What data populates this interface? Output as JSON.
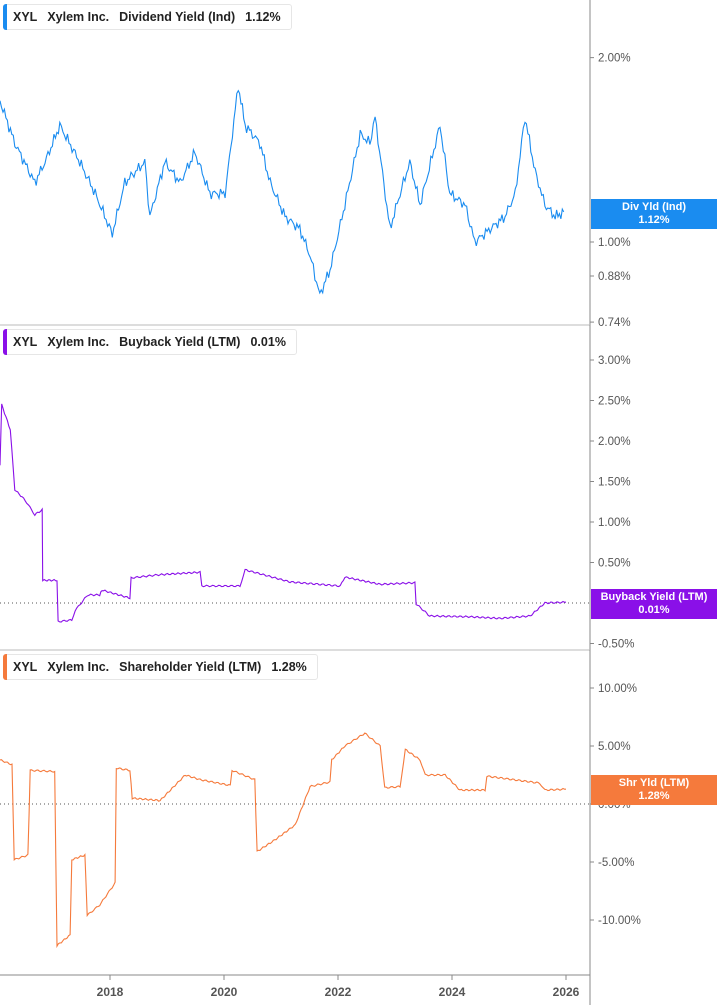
{
  "chart_data": [
    {
      "type": "line",
      "ticker": "XYL",
      "company": "Xylem Inc.",
      "title": "Dividend Yield (Ind)",
      "value_label": "1.12%",
      "tag_title": "Div Yld (Ind)",
      "tag_value": "1.12%",
      "color": "#1a8cf0",
      "scale": "log",
      "yticks": [
        "2.00%",
        "1.00%",
        "0.88%",
        "0.74%"
      ],
      "ytick_values": [
        2.0,
        1.0,
        0.88,
        0.74
      ],
      "x": [
        2016.07,
        2016.33,
        2016.68,
        2016.86,
        2017.12,
        2017.47,
        2017.74,
        2018.04,
        2018.26,
        2018.61,
        2018.7,
        2018.96,
        2019.23,
        2019.49,
        2019.75,
        2020.02,
        2020.25,
        2020.37,
        2020.63,
        2020.81,
        2021.07,
        2021.33,
        2021.51,
        2021.68,
        2021.86,
        2022.12,
        2022.39,
        2022.56,
        2022.65,
        2022.91,
        2023.09,
        2023.26,
        2023.44,
        2023.79,
        2023.96,
        2024.23,
        2024.4,
        2024.67,
        2024.93,
        2025.11,
        2025.28,
        2025.46,
        2025.63,
        2025.81,
        2025.96
      ],
      "y": [
        1.7,
        1.45,
        1.25,
        1.35,
        1.55,
        1.35,
        1.2,
        1.03,
        1.25,
        1.35,
        1.1,
        1.35,
        1.25,
        1.4,
        1.2,
        1.2,
        1.8,
        1.55,
        1.45,
        1.25,
        1.1,
        1.05,
        0.95,
        0.82,
        0.9,
        1.15,
        1.5,
        1.45,
        1.6,
        1.05,
        1.2,
        1.35,
        1.15,
        1.55,
        1.2,
        1.15,
        1.0,
        1.05,
        1.1,
        1.2,
        1.6,
        1.3,
        1.15,
        1.1,
        1.12
      ],
      "ylim": [
        0.72,
        2.3
      ]
    },
    {
      "type": "line",
      "ticker": "XYL",
      "company": "Xylem Inc.",
      "title": "Buyback Yield (LTM)",
      "value_label": "0.01%",
      "tag_title": "Buyback Yield (LTM)",
      "tag_value": "0.01%",
      "color": "#8a10e8",
      "scale": "linear",
      "yticks": [
        "3.00%",
        "2.50%",
        "2.00%",
        "1.50%",
        "1.00%",
        "0.50%",
        "-0.50%"
      ],
      "ytick_values": [
        3.0,
        2.5,
        2.0,
        1.5,
        1.0,
        0.5,
        -0.5
      ],
      "x": [
        2016.07,
        2016.1,
        2016.25,
        2016.33,
        2016.51,
        2016.68,
        2016.81,
        2016.82,
        2017.07,
        2017.09,
        2017.33,
        2017.39,
        2017.61,
        2017.82,
        2017.86,
        2018.35,
        2018.37,
        2018.88,
        2019.58,
        2019.61,
        2020.28,
        2020.37,
        2021.16,
        2022.04,
        2022.12,
        2022.74,
        2023.35,
        2023.37,
        2023.61,
        2024.32,
        2024.84,
        2025.37,
        2025.63,
        2026.0
      ],
      "y": [
        1.7,
        2.45,
        2.14,
        1.4,
        1.27,
        1.09,
        1.15,
        0.28,
        0.28,
        -0.23,
        -0.21,
        -0.09,
        0.1,
        0.1,
        0.16,
        0.06,
        0.31,
        0.35,
        0.38,
        0.21,
        0.21,
        0.41,
        0.26,
        0.21,
        0.32,
        0.23,
        0.25,
        -0.01,
        -0.16,
        -0.17,
        -0.19,
        -0.16,
        0.0,
        0.01
      ],
      "ylim": [
        -0.7,
        3.5
      ]
    },
    {
      "type": "line",
      "ticker": "XYL",
      "company": "Xylem Inc.",
      "title": "Shareholder Yield (LTM)",
      "value_label": "1.28%",
      "tag_title": "Shr Yld (LTM)",
      "tag_value": "1.28%",
      "color": "#f57a3c",
      "scale": "linear",
      "yticks": [
        "10.00%",
        "5.00%",
        "0.00%",
        "-5.00%",
        "-10.00%"
      ],
      "ytick_values": [
        10,
        5,
        0,
        -5,
        -10
      ],
      "x": [
        2016.07,
        2016.28,
        2016.32,
        2016.56,
        2016.6,
        2017.03,
        2017.07,
        2017.3,
        2017.33,
        2017.56,
        2017.6,
        2017.82,
        2018.09,
        2018.11,
        2018.35,
        2018.39,
        2018.88,
        2019.32,
        2019.58,
        2020.11,
        2020.14,
        2020.54,
        2020.58,
        2020.89,
        2021.25,
        2021.51,
        2021.86,
        2021.89,
        2022.12,
        2022.47,
        2022.74,
        2022.82,
        2023.09,
        2023.18,
        2023.44,
        2023.53,
        2023.88,
        2024.14,
        2024.58,
        2024.61,
        2025.54,
        2025.63,
        2026.0
      ],
      "y": [
        3.8,
        3.4,
        -4.8,
        -4.4,
        2.9,
        2.8,
        -12.2,
        -11.3,
        -4.8,
        -4.4,
        -9.6,
        -8.7,
        -6.8,
        3.1,
        2.9,
        0.5,
        0.3,
        2.5,
        2.1,
        1.6,
        2.9,
        2.1,
        -4.1,
        -3.1,
        -1.8,
        1.5,
        1.9,
        3.8,
        5.0,
        6.1,
        5.0,
        1.4,
        1.5,
        4.7,
        3.8,
        2.5,
        2.5,
        1.2,
        1.2,
        2.4,
        1.8,
        1.2,
        1.28
      ],
      "ylim": [
        -14.5,
        14
      ]
    }
  ],
  "xaxis": {
    "ticks": [
      "2018",
      "2020",
      "2022",
      "2024",
      "2026"
    ],
    "tick_values": [
      2018,
      2020,
      2022,
      2024,
      2026
    ]
  }
}
